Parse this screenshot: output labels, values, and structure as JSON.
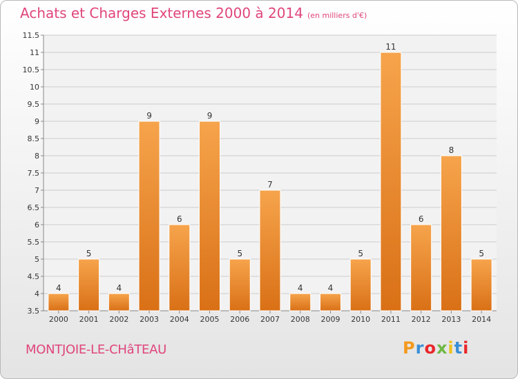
{
  "title": "Achats et Charges Externes 2000 à 2014",
  "title_unit": "(en milliers d'€)",
  "commune": "MONTJOIE-LE-CHâTEAU",
  "logo_letters": [
    "P",
    "r",
    "o",
    "x",
    "i",
    "t",
    "i"
  ],
  "colors": {
    "bar_light": "#f6a44c",
    "bar_dark": "#d97016",
    "title": "#e0457b",
    "grid": "#cccccc"
  },
  "chart_data": {
    "type": "bar",
    "title": "Achats et Charges Externes 2000 à 2014",
    "subtitle": "(en milliers d'€)",
    "categories": [
      "2000",
      "2001",
      "2002",
      "2003",
      "2004",
      "2005",
      "2006",
      "2007",
      "2008",
      "2009",
      "2010",
      "2011",
      "2012",
      "2013",
      "2014"
    ],
    "values": [
      4,
      5,
      4,
      9,
      6,
      9,
      5,
      7,
      4,
      4,
      5,
      11,
      6,
      8,
      5
    ],
    "ylim": [
      3.5,
      11.5
    ],
    "yticks": [
      "3.5",
      "4",
      "4.5",
      "5",
      "5.5",
      "6",
      "6.5",
      "7",
      "7.5",
      "8",
      "8.5",
      "9",
      "9.5",
      "10",
      "10.5",
      "11",
      "11.5"
    ],
    "grid": true
  }
}
